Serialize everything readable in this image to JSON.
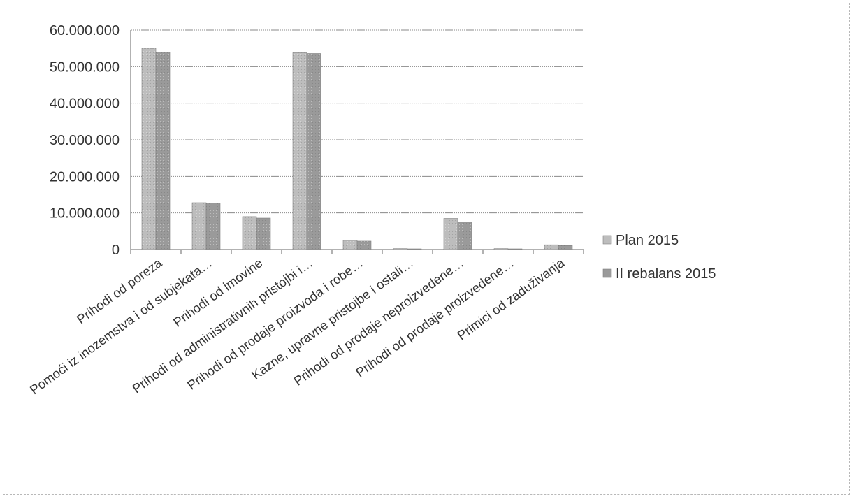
{
  "chart_data": {
    "type": "bar",
    "categories": [
      "Prihodi od poreza",
      "Pomoći iz inozemstva i od subjekata…",
      "Prihodi od imovine",
      "Prihodi od administrativnih pristojbi i…",
      "Prihodi od prodaje proizvoda i robe…",
      "Kazne, upravne pristojbe i ostali…",
      "Prihodi od prodaje neproizvedene…",
      "Prihodi od prodaje proizvedene…",
      "Primici od zaduživanja"
    ],
    "series": [
      {
        "name": "Plan 2015",
        "values": [
          55000000,
          12800000,
          9000000,
          53800000,
          2500000,
          250000,
          8500000,
          250000,
          1300000
        ]
      },
      {
        "name": "II rebalans 2015",
        "values": [
          54000000,
          12700000,
          8600000,
          53600000,
          2300000,
          100000,
          7500000,
          150000,
          1100000
        ]
      }
    ],
    "title": "",
    "xlabel": "",
    "ylabel": "",
    "ylim": [
      0,
      60000000
    ],
    "yticks": [
      0,
      10000000,
      20000000,
      30000000,
      40000000,
      50000000,
      60000000
    ],
    "ytick_labels": [
      "0",
      "10.000.000",
      "20.000.000",
      "30.000.000",
      "40.000.000",
      "50.000.000",
      "60.000.000"
    ],
    "grid": true,
    "legend_position": "right",
    "colors": [
      "#bdbdbd",
      "#9a9a9a"
    ]
  }
}
